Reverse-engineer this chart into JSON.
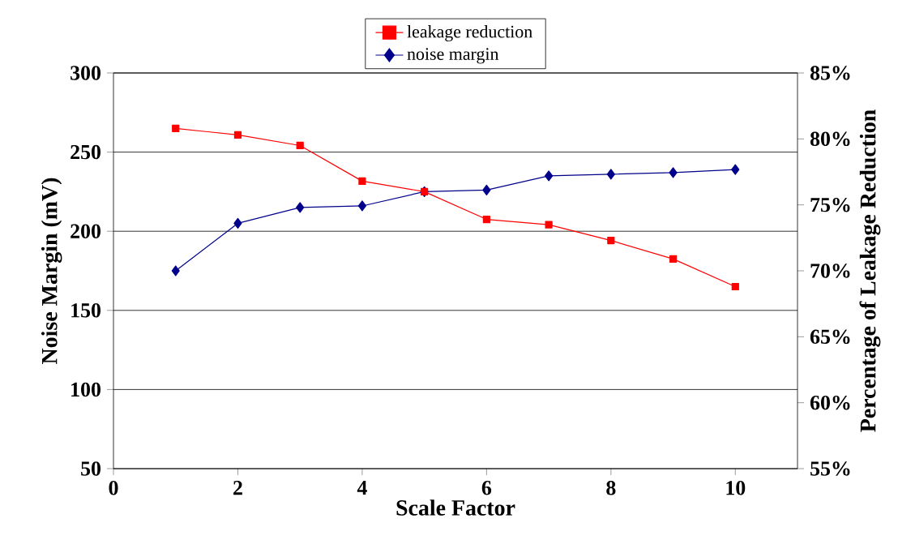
{
  "chart_data": {
    "type": "line",
    "xlabel": "Scale Factor",
    "ylabel": "Noise Margin (mV)",
    "y2label": "Percentage of Leakage Reduction",
    "x": [
      1,
      2,
      3,
      4,
      5,
      6,
      7,
      8,
      9,
      10
    ],
    "series": [
      {
        "name": "leakage reduction",
        "color": "#ff0000",
        "axis": "y2",
        "marker": "square",
        "values": [
          80.8,
          80.3,
          79.5,
          76.8,
          76.0,
          73.9,
          73.5,
          72.3,
          70.9,
          68.8
        ]
      },
      {
        "name": "noise margin",
        "color": "#00008b",
        "axis": "y",
        "marker": "diamond",
        "values": [
          175,
          205,
          215,
          216,
          225,
          226,
          235,
          236,
          237,
          239
        ]
      }
    ],
    "xlim": [
      0,
      11
    ],
    "xticks": [
      0,
      2,
      4,
      6,
      8,
      10
    ],
    "ylim": [
      50,
      300
    ],
    "yticks": [
      50,
      100,
      150,
      200,
      250,
      300
    ],
    "y2lim": [
      55,
      85
    ],
    "y2ticks": [
      {
        "value": 55,
        "label": "55%"
      },
      {
        "value": 60,
        "label": "60%"
      },
      {
        "value": 65,
        "label": "65%"
      },
      {
        "value": 70,
        "label": "70%"
      },
      {
        "value": 75,
        "label": "75%"
      },
      {
        "value": 80,
        "label": "80%"
      },
      {
        "value": 85,
        "label": "85%"
      }
    ],
    "grid": "y",
    "legend": "top",
    "line_style": "solid"
  }
}
